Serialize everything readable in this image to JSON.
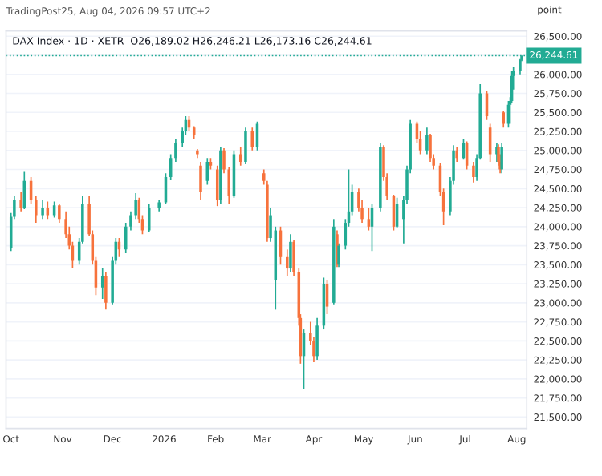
{
  "chart_data": {
    "type": "candlestick",
    "title": "DAX Index · 1D · XETR  O26,189.02 H26,246.21 L26,173.16 C26,244.61",
    "subtitle": "TradingPost25, Aug 04, 2026 09:57 UTC+2",
    "ylabel": "point",
    "x": [
      "2025-10-01",
      "2025-10-03",
      "2025-10-07",
      "2025-10-09",
      "2025-10-13",
      "2025-10-16",
      "2025-10-20",
      "2025-10-23",
      "2025-10-27",
      "2025-10-30",
      "2025-11-03",
      "2025-11-05",
      "2025-11-07",
      "2025-11-11",
      "2025-11-13",
      "2025-11-17",
      "2025-11-19",
      "2025-11-21",
      "2025-11-25",
      "2025-11-27",
      "2025-12-01",
      "2025-12-03",
      "2025-12-05",
      "2025-12-09",
      "2025-12-12",
      "2025-12-15",
      "2025-12-17",
      "2025-12-19",
      "2025-12-23",
      "2025-12-29",
      "2026-01-02",
      "2026-01-05",
      "2026-01-08",
      "2026-01-12",
      "2026-01-14",
      "2026-01-16",
      "2026-01-19",
      "2026-01-21",
      "2026-01-23",
      "2026-01-27",
      "2026-01-29",
      "2026-02-02",
      "2026-02-04",
      "2026-02-06",
      "2026-02-09",
      "2026-02-12",
      "2026-02-16",
      "2026-02-19",
      "2026-02-23",
      "2026-02-26",
      "2026-03-02",
      "2026-03-04",
      "2026-03-06",
      "2026-03-09",
      "2026-03-12",
      "2026-03-16",
      "2026-03-18",
      "2026-03-20",
      "2026-03-23",
      "2026-03-24",
      "2026-03-26",
      "2026-03-30",
      "2026-04-01",
      "2026-04-03",
      "2026-04-07",
      "2026-04-09",
      "2026-04-13",
      "2026-04-15",
      "2026-04-16",
      "2026-04-20",
      "2026-04-22",
      "2026-04-24",
      "2026-04-28",
      "2026-04-30",
      "2026-05-04",
      "2026-05-06",
      "2026-05-11",
      "2026-05-13",
      "2026-05-15",
      "2026-05-19",
      "2026-05-21",
      "2026-05-25",
      "2026-05-27",
      "2026-05-29",
      "2026-06-02",
      "2026-06-04",
      "2026-06-08",
      "2026-06-10",
      "2026-06-12",
      "2026-06-16",
      "2026-06-18",
      "2026-06-22",
      "2026-06-24",
      "2026-06-26",
      "2026-06-30",
      "2026-07-02",
      "2026-07-06",
      "2026-07-08",
      "2026-07-10",
      "2026-07-14",
      "2026-07-16",
      "2026-07-20",
      "2026-07-21",
      "2026-07-22",
      "2026-07-23",
      "2026-07-24",
      "2026-07-27",
      "2026-07-28",
      "2026-07-29",
      "2026-07-30",
      "2026-08-03",
      "2026-08-04"
    ],
    "ohlc": [
      [
        23720,
        24180,
        23680,
        24130
      ],
      [
        24130,
        24400,
        24100,
        24350
      ],
      [
        24350,
        24450,
        24200,
        24250
      ],
      [
        24250,
        24720,
        24230,
        24600
      ],
      [
        24600,
        24650,
        24300,
        24350
      ],
      [
        24350,
        24400,
        24050,
        24150
      ],
      [
        24150,
        24350,
        24100,
        24250
      ],
      [
        24250,
        24330,
        24100,
        24150
      ],
      [
        24150,
        24330,
        24120,
        24280
      ],
      [
        24280,
        24300,
        24050,
        24100
      ],
      [
        24100,
        24200,
        23850,
        23900
      ],
      [
        23900,
        24000,
        23700,
        23750
      ],
      [
        23750,
        23800,
        23450,
        23550
      ],
      [
        23550,
        23850,
        23500,
        23800
      ],
      [
        23800,
        24400,
        23780,
        24300
      ],
      [
        24300,
        24400,
        23880,
        23900
      ],
      [
        23900,
        23950,
        23500,
        23550
      ],
      [
        23550,
        23600,
        23100,
        23200
      ],
      [
        23200,
        23450,
        23050,
        23350
      ],
      [
        23350,
        23400,
        22910,
        23000
      ],
      [
        23000,
        23600,
        22980,
        23550
      ],
      [
        23550,
        23850,
        23500,
        23800
      ],
      [
        23800,
        23850,
        23600,
        23700
      ],
      [
        23700,
        24050,
        23650,
        24000
      ],
      [
        24000,
        24200,
        23950,
        24150
      ],
      [
        24150,
        24440,
        24100,
        24350
      ],
      [
        24350,
        24380,
        24050,
        24100
      ],
      [
        24100,
        24150,
        23900,
        23950
      ],
      [
        23950,
        24300,
        23930,
        24250
      ],
      [
        24250,
        24350,
        24200,
        24320
      ],
      [
        24320,
        24700,
        24300,
        24650
      ],
      [
        24650,
        24950,
        24620,
        24900
      ],
      [
        24900,
        25150,
        24850,
        25100
      ],
      [
        25100,
        25300,
        25050,
        25250
      ],
      [
        25250,
        25450,
        25200,
        25400
      ],
      [
        25400,
        25450,
        25250,
        25300
      ],
      [
        25300,
        25320,
        25150,
        25200
      ],
      [
        25000,
        25020,
        24900,
        24950
      ],
      [
        24800,
        24850,
        24350,
        24450
      ],
      [
        24600,
        24900,
        24550,
        24850
      ],
      [
        24850,
        24900,
        24750,
        24800
      ],
      [
        24750,
        24800,
        24270,
        24350
      ],
      [
        24350,
        25050,
        24300,
        25000
      ],
      [
        25000,
        25030,
        24700,
        24750
      ],
      [
        24750,
        24780,
        24300,
        24400
      ],
      [
        24400,
        25000,
        24380,
        24950
      ],
      [
        24950,
        25050,
        24800,
        24850
      ],
      [
        24850,
        25300,
        24820,
        25250
      ],
      [
        25250,
        25300,
        25000,
        25050
      ],
      [
        25050,
        25380,
        25000,
        25350
      ],
      [
        24700,
        24750,
        24550,
        24600
      ],
      [
        24550,
        24600,
        23800,
        23850
      ],
      [
        23850,
        24250,
        23800,
        24150
      ],
      [
        23300,
        24000,
        22910,
        23950
      ],
      [
        23950,
        24000,
        23500,
        23600
      ],
      [
        23600,
        23700,
        23350,
        23450
      ],
      [
        23450,
        23900,
        23400,
        23800
      ],
      [
        23800,
        23820,
        23350,
        23400
      ],
      [
        23400,
        23450,
        22700,
        22800
      ],
      [
        22800,
        22850,
        22200,
        22300
      ],
      [
        22300,
        22650,
        21870,
        22600
      ],
      [
        22600,
        22750,
        22450,
        22500
      ],
      [
        22500,
        22550,
        22220,
        22300
      ],
      [
        22300,
        22800,
        22250,
        22700
      ],
      [
        22700,
        23330,
        22650,
        23250
      ],
      [
        23250,
        23300,
        22850,
        22950
      ],
      [
        23000,
        24100,
        22980,
        24000
      ],
      [
        23900,
        23950,
        23470,
        23500
      ],
      [
        23500,
        23780,
        23470,
        23750
      ],
      [
        23750,
        24100,
        23700,
        24050
      ],
      [
        24050,
        24750,
        24000,
        24200
      ],
      [
        24200,
        24550,
        24150,
        24450
      ],
      [
        24450,
        24500,
        24200,
        24250
      ],
      [
        24250,
        24350,
        24050,
        24100
      ],
      [
        24100,
        24250,
        23950,
        24000
      ],
      [
        24000,
        24300,
        23680,
        24250
      ],
      [
        24250,
        25100,
        24200,
        25050
      ],
      [
        25050,
        25070,
        24600,
        24650
      ],
      [
        24650,
        24700,
        24350,
        24400
      ],
      [
        24400,
        24420,
        23950,
        24000
      ],
      [
        24000,
        24380,
        23980,
        24300
      ],
      [
        24100,
        24400,
        23780,
        24350
      ],
      [
        24350,
        24800,
        24300,
        24750
      ],
      [
        24750,
        25400,
        24700,
        25350
      ],
      [
        25350,
        25380,
        25100,
        25150
      ],
      [
        25150,
        25250,
        24950,
        25000
      ],
      [
        25000,
        25300,
        24950,
        25200
      ],
      [
        25200,
        25220,
        24850,
        24900
      ],
      [
        24900,
        24950,
        24750,
        24800
      ],
      [
        24800,
        24830,
        24400,
        24450
      ],
      [
        24450,
        24500,
        24020,
        24200
      ],
      [
        24200,
        24650,
        24150,
        24600
      ],
      [
        24600,
        25070,
        24550,
        25000
      ],
      [
        25000,
        25050,
        24850,
        24900
      ],
      [
        24900,
        25150,
        24880,
        25100
      ],
      [
        25100,
        25120,
        24750,
        24800
      ],
      [
        24800,
        24850,
        24580,
        24650
      ],
      [
        24650,
        24950,
        24600,
        24900
      ],
      [
        24900,
        25870,
        24880,
        25750
      ],
      [
        25750,
        25780,
        25400,
        25450
      ],
      [
        25300,
        25350,
        24850,
        24950
      ],
      [
        24950,
        25100,
        24850,
        25050
      ],
      [
        25050,
        25080,
        24800,
        24850
      ],
      [
        24850,
        24950,
        24700,
        24750
      ],
      [
        24750,
        25100,
        24700,
        25050
      ],
      [
        25500,
        25520,
        25300,
        25350
      ],
      [
        25350,
        25650,
        25300,
        25600
      ],
      [
        25600,
        25700,
        25350,
        25650
      ],
      [
        25650,
        26040,
        25620,
        25980
      ],
      [
        25980,
        26100,
        25800,
        26050
      ],
      [
        26050,
        26200,
        26000,
        26189
      ],
      [
        26189.02,
        26246.21,
        26173.16,
        26244.61
      ]
    ],
    "colors": [
      "#22ab94",
      "#22ab94",
      "#f7723c",
      "#22ab94",
      "#f7723c",
      "#f7723c",
      "#22ab94",
      "#f7723c",
      "#22ab94",
      "#f7723c",
      "#f7723c",
      "#f7723c",
      "#f7723c",
      "#22ab94",
      "#22ab94",
      "#f7723c",
      "#f7723c",
      "#f7723c",
      "#22ab94",
      "#f7723c",
      "#22ab94",
      "#22ab94",
      "#f7723c",
      "#22ab94",
      "#22ab94",
      "#22ab94",
      "#f7723c",
      "#f7723c",
      "#22ab94",
      "#22ab94",
      "#22ab94",
      "#22ab94",
      "#22ab94",
      "#22ab94",
      "#22ab94",
      "#f7723c",
      "#f7723c",
      "#f7723c",
      "#f7723c",
      "#22ab94",
      "#f7723c",
      "#f7723c",
      "#22ab94",
      "#f7723c",
      "#f7723c",
      "#22ab94",
      "#f7723c",
      "#22ab94",
      "#f7723c",
      "#22ab94",
      "#f7723c",
      "#f7723c",
      "#22ab94",
      "#22ab94",
      "#f7723c",
      "#f7723c",
      "#22ab94",
      "#f7723c",
      "#f7723c",
      "#f7723c",
      "#22ab94",
      "#f7723c",
      "#f7723c",
      "#22ab94",
      "#22ab94",
      "#f7723c",
      "#22ab94",
      "#f7723c",
      "#22ab94",
      "#22ab94",
      "#22ab94",
      "#22ab94",
      "#f7723c",
      "#f7723c",
      "#f7723c",
      "#22ab94",
      "#22ab94",
      "#f7723c",
      "#f7723c",
      "#f7723c",
      "#22ab94",
      "#22ab94",
      "#22ab94",
      "#22ab94",
      "#f7723c",
      "#f7723c",
      "#22ab94",
      "#f7723c",
      "#f7723c",
      "#f7723c",
      "#f7723c",
      "#22ab94",
      "#22ab94",
      "#f7723c",
      "#22ab94",
      "#f7723c",
      "#f7723c",
      "#22ab94",
      "#22ab94",
      "#f7723c",
      "#f7723c",
      "#22ab94",
      "#f7723c",
      "#f7723c",
      "#22ab94",
      "#f7723c",
      "#22ab94",
      "#22ab94",
      "#22ab94",
      "#22ab94",
      "#22ab94",
      "#22ab94"
    ],
    "xlim": [
      "2025-09-28",
      "2026-08-07"
    ],
    "xticks": [
      {
        "value": "2025-10-01",
        "label": "Oct"
      },
      {
        "value": "2025-11-01",
        "label": "Nov"
      },
      {
        "value": "2025-12-01",
        "label": "Dec"
      },
      {
        "value": "2026-01-01",
        "label": "2026"
      },
      {
        "value": "2026-02-01",
        "label": "Feb"
      },
      {
        "value": "2026-03-01",
        "label": "Mar"
      },
      {
        "value": "2026-04-01",
        "label": "Apr"
      },
      {
        "value": "2026-05-01",
        "label": "May"
      },
      {
        "value": "2026-06-01",
        "label": "Jun"
      },
      {
        "value": "2026-07-01",
        "label": "Jul"
      },
      {
        "value": "2026-08-01",
        "label": "Aug"
      }
    ],
    "ylim": [
      21350,
      26570
    ],
    "yticks": [
      {
        "value": 21500,
        "label": "21,500.00"
      },
      {
        "value": 21750,
        "label": "21,750.00"
      },
      {
        "value": 22000,
        "label": "22,000.00"
      },
      {
        "value": 22250,
        "label": "22,250.00"
      },
      {
        "value": 22500,
        "label": "22,500.00"
      },
      {
        "value": 22750,
        "label": "22,750.00"
      },
      {
        "value": 23000,
        "label": "23,000.00"
      },
      {
        "value": 23250,
        "label": "23,250.00"
      },
      {
        "value": 23500,
        "label": "23,500.00"
      },
      {
        "value": 23750,
        "label": "23,750.00"
      },
      {
        "value": 24000,
        "label": "24,000.00"
      },
      {
        "value": 24250,
        "label": "24,250.00"
      },
      {
        "value": 24500,
        "label": "24,500.00"
      },
      {
        "value": 24750,
        "label": "24,750.00"
      },
      {
        "value": 25000,
        "label": "25,000.00"
      },
      {
        "value": 25250,
        "label": "25,250.00"
      },
      {
        "value": 25500,
        "label": "25,500.00"
      },
      {
        "value": 25750,
        "label": "25,750.00"
      },
      {
        "value": 26000,
        "label": "26,000.00"
      },
      {
        "value": 26250,
        "label": null
      },
      {
        "value": 26500,
        "label": "26,500.00"
      }
    ],
    "ref_lines": [
      {
        "axis": "y",
        "value": 26244.61,
        "label": "26,244.61",
        "color": "#22ab94",
        "line_style": "dotted"
      }
    ],
    "grid": "y"
  }
}
